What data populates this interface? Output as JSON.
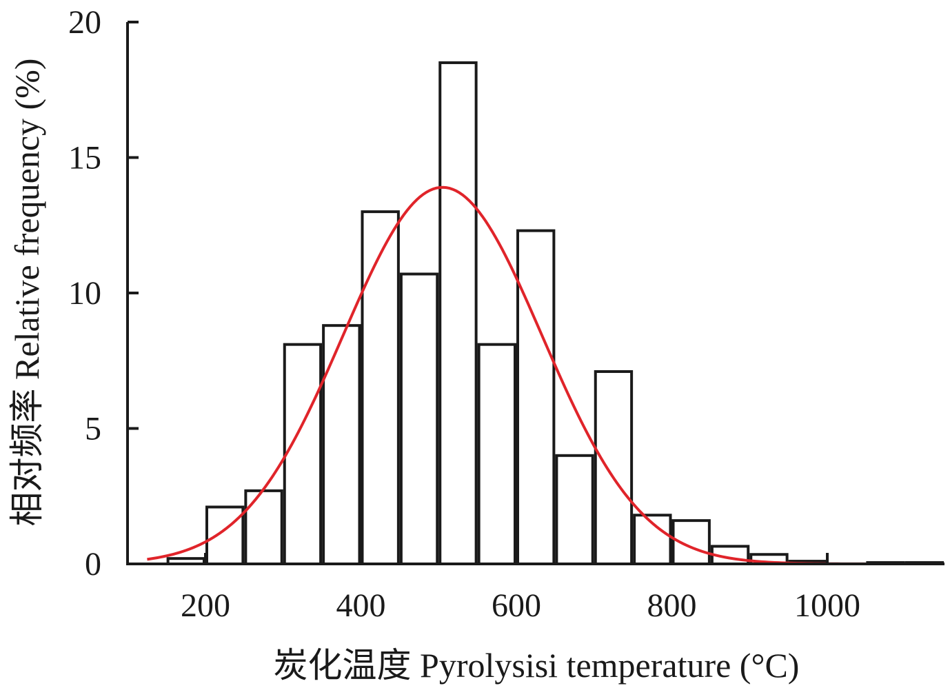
{
  "chart_data": {
    "type": "bar",
    "title": "",
    "xlabel": "炭化温度 Pyrolysisi temperature (°C)",
    "ylabel": "相对频率 Relative frequency (%)",
    "xlim": [
      125,
      1150
    ],
    "ylim": [
      0,
      20
    ],
    "xticks": [
      200,
      400,
      600,
      800,
      1000
    ],
    "yticks": [
      0,
      5,
      10,
      15,
      20
    ],
    "bin_width": 50,
    "bins": [
      {
        "x_start": 150,
        "x_end": 200,
        "value": 0.2
      },
      {
        "x_start": 200,
        "x_end": 250,
        "value": 2.1
      },
      {
        "x_start": 250,
        "x_end": 300,
        "value": 2.7
      },
      {
        "x_start": 300,
        "x_end": 350,
        "value": 8.1
      },
      {
        "x_start": 350,
        "x_end": 400,
        "value": 8.8
      },
      {
        "x_start": 400,
        "x_end": 450,
        "value": 13.0
      },
      {
        "x_start": 450,
        "x_end": 500,
        "value": 10.7
      },
      {
        "x_start": 500,
        "x_end": 550,
        "value": 18.5
      },
      {
        "x_start": 550,
        "x_end": 600,
        "value": 8.1
      },
      {
        "x_start": 600,
        "x_end": 650,
        "value": 12.3
      },
      {
        "x_start": 650,
        "x_end": 700,
        "value": 4.0
      },
      {
        "x_start": 700,
        "x_end": 750,
        "value": 7.1
      },
      {
        "x_start": 750,
        "x_end": 800,
        "value": 1.8
      },
      {
        "x_start": 800,
        "x_end": 850,
        "value": 1.6
      },
      {
        "x_start": 850,
        "x_end": 900,
        "value": 0.65
      },
      {
        "x_start": 900,
        "x_end": 950,
        "value": 0.35
      },
      {
        "x_start": 950,
        "x_end": 1000,
        "value": 0.1
      },
      {
        "x_start": 1000,
        "x_end": 1050,
        "value": 0.0
      },
      {
        "x_start": 1050,
        "x_end": 1100,
        "value": 0.05
      },
      {
        "x_start": 1100,
        "x_end": 1150,
        "value": 0.05
      }
    ],
    "fit_curve": {
      "type": "normal",
      "color": "#e0242a",
      "peak_x": 505,
      "peak_y": 13.9,
      "sigma": 128,
      "x_range": [
        125,
        1140
      ]
    },
    "bar_fill": "#ffffff",
    "bar_stroke": "#1a1a1a",
    "grid": false,
    "legend": "none"
  }
}
